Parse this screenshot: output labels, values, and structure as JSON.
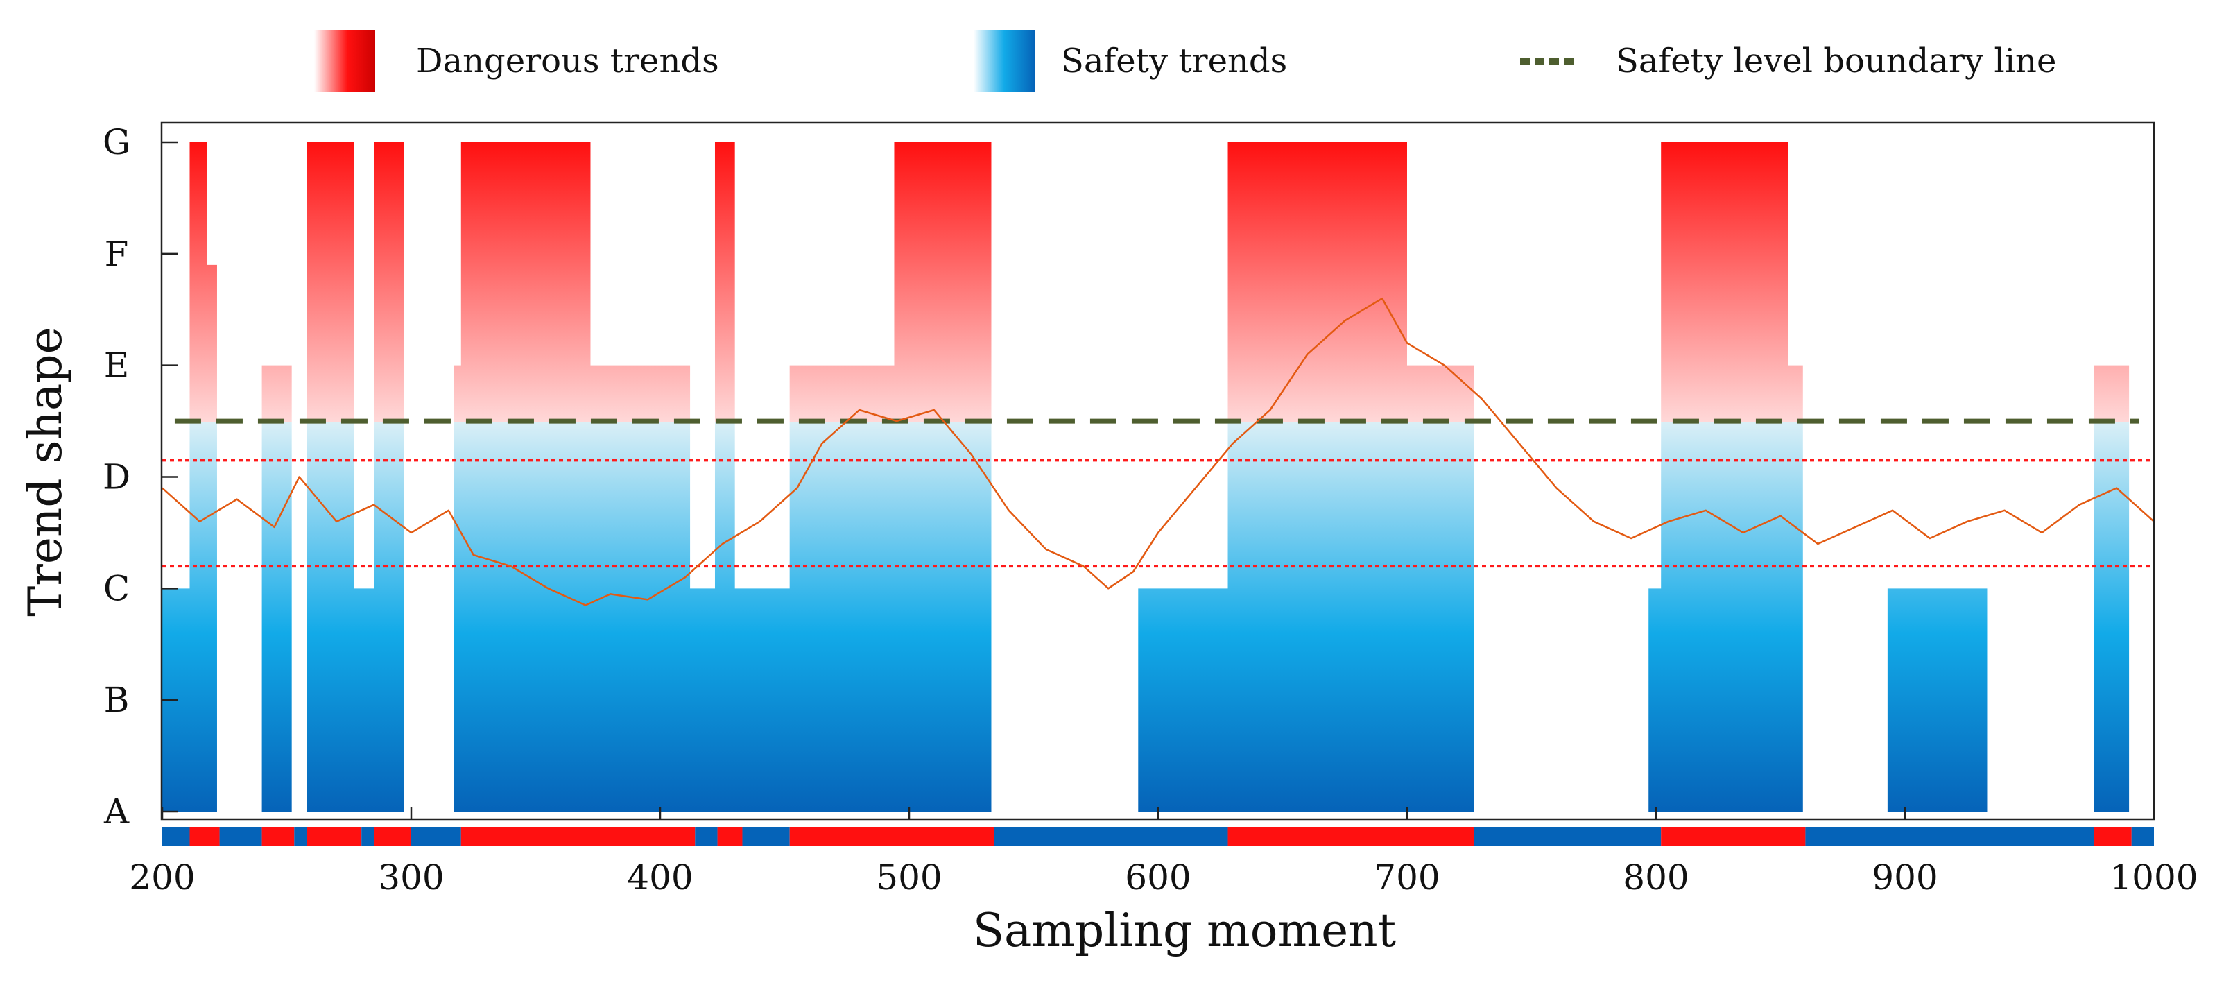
{
  "chart_data": {
    "type": "area",
    "xlabel": "Sampling moment",
    "ylabel": "Trend shape",
    "xlim": [
      200,
      1000
    ],
    "x_ticks": [
      200,
      300,
      400,
      500,
      600,
      700,
      800,
      900,
      1000
    ],
    "y_categories": [
      "A",
      "B",
      "C",
      "D",
      "E",
      "F",
      "G"
    ],
    "colors": {
      "danger_dark": "#cc0000",
      "danger": "#ff1010",
      "danger_light": "#ffd9d9",
      "safety_light": "#dff1f7",
      "safety": "#12aae8",
      "safety_dark": "#0563b8",
      "boundary": "#4e5e2f",
      "thresholds": "#ff1a1a",
      "signal": "#e35a12"
    },
    "legend": [
      {
        "key": "danger",
        "label": "Dangerous trends"
      },
      {
        "key": "safety",
        "label": "Safety trends"
      },
      {
        "key": "boundary",
        "label": "Safety level boundary line"
      }
    ],
    "boundary_level": 4.5,
    "threshold_levels": [
      4.15,
      3.2
    ],
    "segments": [
      {
        "x0": 200,
        "x1": 211,
        "level": 3
      },
      {
        "x0": 211,
        "x1": 218,
        "level": 7
      },
      {
        "x0": 218,
        "x1": 222,
        "level": 5.9
      },
      {
        "x0": 222,
        "x1": 240,
        "level": 1
      },
      {
        "x0": 240,
        "x1": 252,
        "level": 5
      },
      {
        "x0": 252,
        "x1": 258,
        "level": 1
      },
      {
        "x0": 258,
        "x1": 277,
        "level": 7
      },
      {
        "x0": 277,
        "x1": 285,
        "level": 3
      },
      {
        "x0": 285,
        "x1": 297,
        "level": 7
      },
      {
        "x0": 297,
        "x1": 317,
        "level": 1
      },
      {
        "x0": 317,
        "x1": 320,
        "level": 5
      },
      {
        "x0": 320,
        "x1": 372,
        "level": 7
      },
      {
        "x0": 372,
        "x1": 412,
        "level": 5
      },
      {
        "x0": 412,
        "x1": 422,
        "level": 3
      },
      {
        "x0": 422,
        "x1": 430,
        "level": 7
      },
      {
        "x0": 430,
        "x1": 452,
        "level": 3
      },
      {
        "x0": 452,
        "x1": 494,
        "level": 5
      },
      {
        "x0": 494,
        "x1": 533,
        "level": 7
      },
      {
        "x0": 533,
        "x1": 592,
        "level": 1
      },
      {
        "x0": 592,
        "x1": 628,
        "level": 3
      },
      {
        "x0": 628,
        "x1": 700,
        "level": 7
      },
      {
        "x0": 700,
        "x1": 727,
        "level": 5
      },
      {
        "x0": 727,
        "x1": 797,
        "level": 1
      },
      {
        "x0": 797,
        "x1": 802,
        "level": 3
      },
      {
        "x0": 802,
        "x1": 853,
        "level": 7
      },
      {
        "x0": 853,
        "x1": 859,
        "level": 5
      },
      {
        "x0": 859,
        "x1": 893,
        "level": 1
      },
      {
        "x0": 893,
        "x1": 933,
        "level": 3
      },
      {
        "x0": 933,
        "x1": 976,
        "level": 1
      },
      {
        "x0": 976,
        "x1": 990,
        "level": 5
      },
      {
        "x0": 990,
        "x1": 1000,
        "level": 1
      }
    ],
    "status_bar": [
      {
        "x0": 200,
        "x1": 211,
        "state": "safety"
      },
      {
        "x0": 211,
        "x1": 223,
        "state": "danger"
      },
      {
        "x0": 223,
        "x1": 240,
        "state": "safety"
      },
      {
        "x0": 240,
        "x1": 253,
        "state": "danger"
      },
      {
        "x0": 253,
        "x1": 258,
        "state": "safety"
      },
      {
        "x0": 258,
        "x1": 280,
        "state": "danger"
      },
      {
        "x0": 280,
        "x1": 285,
        "state": "safety"
      },
      {
        "x0": 285,
        "x1": 300,
        "state": "danger"
      },
      {
        "x0": 300,
        "x1": 320,
        "state": "safety"
      },
      {
        "x0": 320,
        "x1": 414,
        "state": "danger"
      },
      {
        "x0": 414,
        "x1": 423,
        "state": "safety"
      },
      {
        "x0": 423,
        "x1": 433,
        "state": "danger"
      },
      {
        "x0": 433,
        "x1": 452,
        "state": "safety"
      },
      {
        "x0": 452,
        "x1": 534,
        "state": "danger"
      },
      {
        "x0": 534,
        "x1": 628,
        "state": "safety"
      },
      {
        "x0": 628,
        "x1": 727,
        "state": "danger"
      },
      {
        "x0": 727,
        "x1": 802,
        "state": "safety"
      },
      {
        "x0": 802,
        "x1": 860,
        "state": "danger"
      },
      {
        "x0": 860,
        "x1": 976,
        "state": "safety"
      },
      {
        "x0": 976,
        "x1": 991,
        "state": "danger"
      },
      {
        "x0": 991,
        "x1": 1000,
        "state": "safety"
      }
    ],
    "signal": {
      "x": [
        200,
        215,
        230,
        245,
        255,
        270,
        285,
        300,
        315,
        325,
        340,
        355,
        370,
        380,
        395,
        410,
        425,
        440,
        455,
        465,
        480,
        495,
        510,
        525,
        540,
        555,
        570,
        580,
        590,
        600,
        615,
        630,
        645,
        660,
        675,
        690,
        700,
        715,
        730,
        745,
        760,
        775,
        790,
        805,
        820,
        835,
        850,
        865,
        880,
        895,
        910,
        925,
        940,
        955,
        970,
        985,
        1000
      ],
      "y": [
        3.9,
        3.6,
        3.8,
        3.55,
        4.0,
        3.6,
        3.75,
        3.5,
        3.7,
        3.3,
        3.2,
        3.0,
        2.85,
        2.95,
        2.9,
        3.1,
        3.4,
        3.6,
        3.9,
        4.3,
        4.6,
        4.5,
        4.6,
        4.2,
        3.7,
        3.35,
        3.2,
        3.0,
        3.15,
        3.5,
        3.9,
        4.3,
        4.6,
        5.1,
        5.4,
        5.6,
        5.2,
        5.0,
        4.7,
        4.3,
        3.9,
        3.6,
        3.45,
        3.6,
        3.7,
        3.5,
        3.65,
        3.4,
        3.55,
        3.7,
        3.45,
        3.6,
        3.7,
        3.5,
        3.75,
        3.9,
        3.6
      ]
    }
  }
}
